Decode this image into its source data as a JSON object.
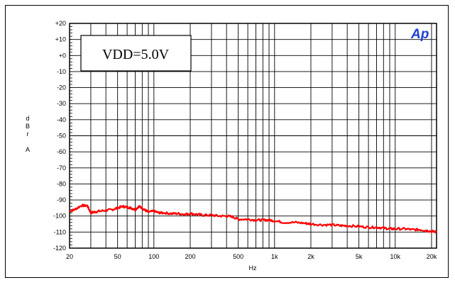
{
  "chart_data": {
    "type": "line",
    "title": "",
    "xlabel": "Hz",
    "ylabel": "dBr A",
    "x_scale": "log",
    "xlim": [
      20,
      22000
    ],
    "ylim": [
      -120,
      20
    ],
    "x_ticks": [
      {
        "v": 20,
        "label": "20"
      },
      {
        "v": 50,
        "label": "50"
      },
      {
        "v": 100,
        "label": "100"
      },
      {
        "v": 200,
        "label": "200"
      },
      {
        "v": 500,
        "label": "500"
      },
      {
        "v": 1000,
        "label": "1k"
      },
      {
        "v": 2000,
        "label": "2k"
      },
      {
        "v": 5000,
        "label": "5k"
      },
      {
        "v": 10000,
        "label": "10k"
      },
      {
        "v": 20000,
        "label": "20k"
      }
    ],
    "y_ticks": [
      {
        "v": 20,
        "label": "+20"
      },
      {
        "v": 10,
        "label": "+10"
      },
      {
        "v": 0,
        "label": "+0"
      },
      {
        "v": -10,
        "label": "-10"
      },
      {
        "v": -20,
        "label": "-20"
      },
      {
        "v": -30,
        "label": "-30"
      },
      {
        "v": -40,
        "label": "-40"
      },
      {
        "v": -50,
        "label": "-50"
      },
      {
        "v": -60,
        "label": "-60"
      },
      {
        "v": -70,
        "label": "-70"
      },
      {
        "v": -80,
        "label": "-80"
      },
      {
        "v": -90,
        "label": "-90"
      },
      {
        "v": -100,
        "label": "-100"
      },
      {
        "v": -110,
        "label": "-110"
      },
      {
        "v": -120,
        "label": "-120"
      }
    ],
    "grid": true,
    "annotation": "VDD=5.0V",
    "logo": "Ap",
    "series": [
      {
        "color": "#ff0000",
        "x": [
          20,
          22,
          25,
          28,
          30,
          32,
          35,
          40,
          45,
          50,
          55,
          60,
          65,
          70,
          75,
          80,
          85,
          90,
          100,
          110,
          120,
          140,
          160,
          180,
          200,
          230,
          260,
          300,
          350,
          400,
          450,
          500,
          600,
          700,
          800,
          900,
          1000,
          1200,
          1500,
          1800,
          2000,
          2500,
          3000,
          3500,
          4000,
          5000,
          6000,
          7000,
          8000,
          9000,
          10000,
          12000,
          14000,
          16000,
          18000,
          20000,
          22000
        ],
        "y": [
          -97,
          -96,
          -93.5,
          -93.5,
          -98,
          -97.5,
          -97,
          -96.5,
          -96,
          -95,
          -94,
          -94.5,
          -95,
          -96,
          -94,
          -95,
          -96.5,
          -97.5,
          -97,
          -98,
          -98,
          -98.5,
          -98.5,
          -99,
          -98.5,
          -99,
          -99.5,
          -99.5,
          -100,
          -100,
          -100.5,
          -102,
          -102,
          -102.5,
          -102.5,
          -102.5,
          -103,
          -104,
          -104,
          -104.5,
          -105,
          -105.5,
          -105.5,
          -106,
          -106,
          -106.5,
          -107,
          -107,
          -107.5,
          -108,
          -108,
          -108,
          -108.5,
          -108.5,
          -109,
          -109.5,
          -110
        ]
      }
    ]
  }
}
